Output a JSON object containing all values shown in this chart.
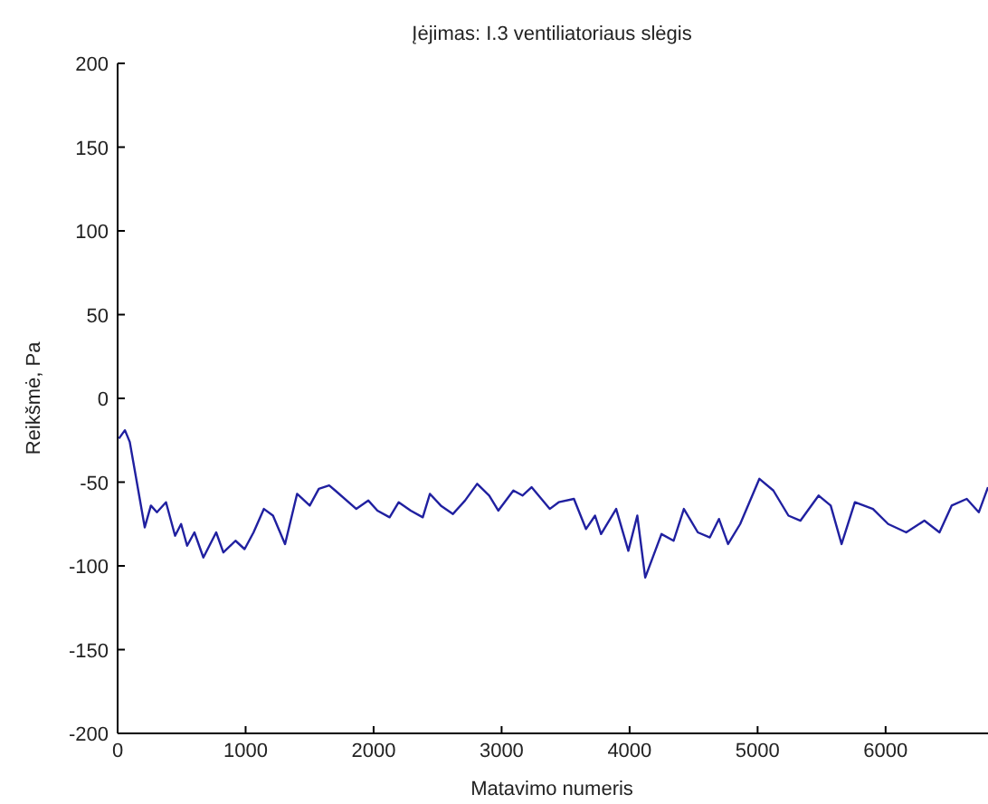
{
  "chart_data": {
    "type": "line",
    "title": "Įėjimas: I.3 ventiliatoriaus slėgis",
    "xlabel": "Matavimo numeris",
    "ylabel": "Reikšmė, Pa",
    "xlim": [
      0,
      6800
    ],
    "xticks": [
      0,
      1000,
      2000,
      3000,
      4000,
      5000,
      6000
    ],
    "ylim": [
      -200,
      200
    ],
    "yticks": [
      -200,
      -150,
      -100,
      -50,
      0,
      50,
      100,
      150,
      200
    ],
    "series": [
      {
        "color": "#2020a0",
        "x": [
          10,
          57,
          95,
          212,
          260,
          307,
          378,
          449,
          496,
          543,
          600,
          670,
          770,
          826,
          921,
          992,
          1062,
          1143,
          1214,
          1308,
          1402,
          1501,
          1572,
          1653,
          1700,
          1865,
          1959,
          2030,
          2125,
          2196,
          2290,
          2384,
          2440,
          2525,
          2620,
          2714,
          2809,
          2903,
          2974,
          3092,
          3163,
          3234,
          3376,
          3446,
          3565,
          3659,
          3730,
          3777,
          3895,
          3990,
          4060,
          4122,
          4249,
          4344,
          4424,
          4533,
          4627,
          4698,
          4769,
          4864,
          5014,
          5123,
          5241,
          5335,
          5477,
          5571,
          5656,
          5760,
          5901,
          6020,
          6161,
          6303,
          6421,
          6516,
          6634,
          6728,
          6800
        ],
        "values": [
          -24,
          -19,
          -26,
          -77,
          -64,
          -68,
          -62,
          -82,
          -75,
          -88,
          -80,
          -95,
          -80,
          -92,
          -85,
          -90,
          -80,
          -66,
          -70,
          -87,
          -57,
          -64,
          -54,
          -52,
          -55,
          -66,
          -61,
          -67,
          -71,
          -62,
          -67,
          -71,
          -57,
          -64,
          -69,
          -61,
          -51,
          -58,
          -67,
          -55,
          -58,
          -53,
          -66,
          -62,
          -60,
          -78,
          -70,
          -81,
          -66,
          -91,
          -70,
          -107,
          -81,
          -85,
          -66,
          -80,
          -83,
          -72,
          -87,
          -75,
          -48,
          -55,
          -70,
          -73,
          -58,
          -64,
          -87,
          -62,
          -66,
          -75,
          -80,
          -73,
          -80,
          -64,
          -60,
          -68,
          -53
        ]
      }
    ]
  }
}
